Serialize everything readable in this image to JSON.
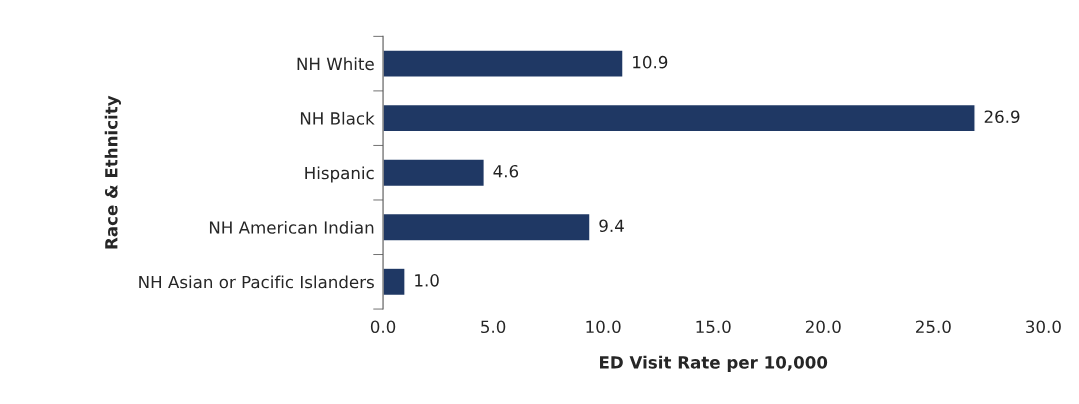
{
  "chart_data": {
    "type": "bar",
    "orientation": "horizontal",
    "xlabel": "ED Visit Rate per 10,000",
    "ylabel": "Race & Ethnicity",
    "categories": [
      "NH White",
      "NH Black",
      "Hispanic",
      "NH American Indian",
      "NH Asian or Pacific Islanders"
    ],
    "values": [
      10.9,
      26.9,
      4.6,
      9.4,
      1.0
    ],
    "value_labels": [
      "10.9",
      "26.9",
      "4.6",
      "9.4",
      "1.0"
    ],
    "color": "#1f3864",
    "xlim": [
      0,
      30
    ],
    "xticks": [
      {
        "value": 0,
        "label": "0.0"
      },
      {
        "value": 5,
        "label": "5.0"
      },
      {
        "value": 10,
        "label": "10.0"
      },
      {
        "value": 15,
        "label": "15.0"
      },
      {
        "value": 20,
        "label": "20.0"
      },
      {
        "value": 25,
        "label": "25.0"
      },
      {
        "value": 30,
        "label": "30.0"
      }
    ],
    "grid": false,
    "legend": false
  }
}
